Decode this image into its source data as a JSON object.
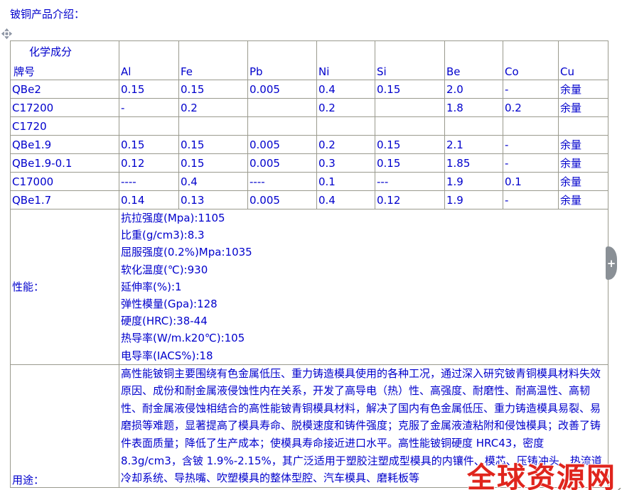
{
  "page": {
    "title": "铍铜产品介绍："
  },
  "table": {
    "header": {
      "group_label": "化学成分",
      "brand_label": "牌号",
      "columns": [
        "Al",
        "Fe",
        "Pb",
        "Ni",
        "Si",
        "Be",
        "Co",
        "Cu"
      ]
    },
    "rows": [
      {
        "brand": "QBe2",
        "values": [
          "0.15",
          "0.15",
          "0.005",
          "0.4",
          "0.15",
          "2.0",
          "-",
          "余量"
        ]
      },
      {
        "brand": "C17200",
        "values": [
          "-",
          "0.2",
          "",
          "0.2",
          "",
          "1.8",
          "0.2",
          "余量"
        ]
      },
      {
        "brand": "C1720",
        "values": [
          "",
          "",
          "",
          "",
          "",
          "",
          "",
          ""
        ]
      },
      {
        "brand": "QBe1.9",
        "values": [
          "0.15",
          "0.15",
          "0.005",
          "0.2",
          "0.15",
          "2.1",
          "-",
          "余量"
        ]
      },
      {
        "brand": "QBe1.9-0.1",
        "values": [
          "0.12",
          "0.15",
          "0.005",
          "0.3",
          "0.15",
          "1.85",
          "-",
          "余量"
        ]
      },
      {
        "brand": "C17000",
        "values": [
          "----",
          "0.4",
          "----",
          "0.1",
          "---",
          "1.9",
          "0.1",
          "余量"
        ]
      },
      {
        "brand": "QBe1.7",
        "values": [
          "0.14",
          "0.13",
          "0.005",
          "0.4",
          "0.12",
          "1.9",
          "-",
          "余量"
        ]
      }
    ],
    "performance": {
      "label": "性能：",
      "lines": [
        "抗拉强度(Mpa):1105",
        "比重(g/cm3):8.3",
        "屈服强度(0.2%)Mpa:1035",
        "软化温度(℃):930",
        "延伸率(%):1",
        "弹性模量(Gpa):128",
        "硬度(HRC):38-44",
        "热导率(W/m.k20℃):105",
        "电导率(IACS%):18"
      ]
    },
    "usage": {
      "label": "用途：",
      "text": "高性能铍铜主要围绕有色金属低压、重力铸造模具使用的各种工况，通过深入研究铍青铜模具材料失效原因、成份和耐金属液侵蚀性内在关系，开发了高导电（热）性、高强度、耐磨性、耐高温性、高韧性、耐金属液侵蚀相结合的高性能铍青铜模具材料，解决了国内有色金属低压、重力铸造模具易裂、易磨损等难题，显著提高了模具寿命、脱模速度和铸件强度；克服了金属液渣粘附和侵蚀模具；改善了铸件表面质量；降低了生产成本；使模具寿命接近进口水平。高性能铍铜硬度 HRC43，密度 8.3g/cm3，含铍 1.9%-2.15%，其广泛适用于塑胶注塑成型模具的内镶件、模芯、压铸冲头、热流道冷却系统、导热嘴、吹塑模具的整体型腔、汽车模具、磨耗板等"
    }
  },
  "side_panel": {
    "plus_label": "+"
  },
  "watermark": {
    "text": "全球资源网",
    "color": "#e0251d"
  },
  "icons": {
    "move_handle": "move-handle-icon",
    "plus": "plus-icon",
    "resize": "resize-grip-icon"
  },
  "colors": {
    "text_blue": "#0000cc",
    "border_gray": "#9a9a8e",
    "outer_border": "#716f60",
    "watermark_red": "#e0251d",
    "tab_gray": "#8a9096"
  }
}
